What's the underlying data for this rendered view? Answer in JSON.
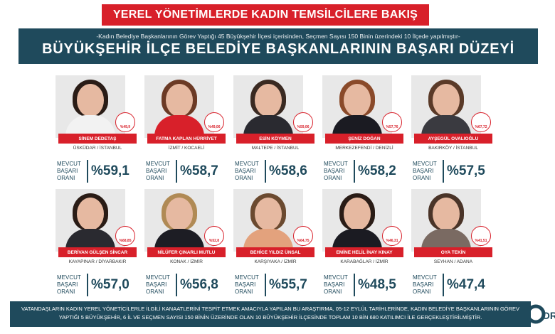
{
  "banner": "YEREL YÖNETİMLERDE KADIN TEMSİLCİLERE BAKIŞ",
  "header": {
    "subtitle": "-Kadın Belediye Başkanlarının Görev Yaptığı 45 Büyükşehir İlçesi içerisinden, Seçmen Sayısı 150 Binin üzerindeki 10 İlçede yapılmıştır-",
    "title": "BÜYÜKŞEHİR İLÇE BELEDİYE BAŞKANLARININ BAŞARI DÜZEYİ"
  },
  "score_label": "MEVCUT BAŞARI ORANI",
  "mayors": [
    {
      "name": "SİNEM DEDETAŞ",
      "loc": "ÜSKÜDAR / İSTANBUL",
      "score": "%59,1",
      "badge": "%49,9"
    },
    {
      "name": "FATMA KAPLAN HÜRRİYET",
      "loc": "İZMİT / KOCAELİ",
      "score": "%58,7",
      "badge": "%49,06"
    },
    {
      "name": "ESİN KÖYMEN",
      "loc": "MALTEPE / İSTANBUL",
      "score": "%58,6",
      "badge": "%59,06"
    },
    {
      "name": "ŞENİZ DOĞAN",
      "loc": "MERKEZEFENDİ / DENİZLİ",
      "score": "%58,2",
      "badge": "%57,76"
    },
    {
      "name": "AYŞEGÜL OVALIOĞLU",
      "loc": "BAKIRKÖY / İSTANBUL",
      "score": "%57,5",
      "badge": "%67,72"
    },
    {
      "name": "BERİVAN GÜLŞEN SİNCAR",
      "loc": "KAYAPINAR / DİYARBAKIR",
      "score": "%57,0",
      "badge": "%68,85"
    },
    {
      "name": "NİLÜFER ÇINARLI MUTLU",
      "loc": "KONAK / İZMİR",
      "score": "%56,8",
      "badge": "%52,8"
    },
    {
      "name": "BEHİCE YILDIZ ÜNSAL",
      "loc": "KARŞIYAKA / İZMİR",
      "score": "%55,7",
      "badge": "%64,75"
    },
    {
      "name": "EMİNE HELİL İNAY KINAY",
      "loc": "KARABAĞLAR / İZMİR",
      "score": "%48,5",
      "badge": "%46,31"
    },
    {
      "name": "OYA TEKİN",
      "loc": "SEYHAN / ADANA",
      "score": "%47,4",
      "badge": "%41,51"
    }
  ],
  "footer": "VATANDAŞLARIN KADIN YEREL YÖNETİCİLERLE İLGİLİ KANAATLERİNİ TESPİT ETMEK AMACIYLA YAPILAN BU ARAŞTIRMA, 05-12 EYLÜL TARİHLERİNDE, KADIN BELEDİYE BAŞKANLARININ GÖREV YAPTIĞI 5 BÜYÜKŞEHİR, 6 İL VE SEÇMEN SAYISI 150 BİNİN ÜZERİNDE OLAN 10 BÜYÜKŞEHİR İLÇESİNDE TOPLAM 10 BİN 680 KATILIMCI İLE GERÇEKLEŞTİRİLMİŞTİR.",
  "logo_text": "OR",
  "colors": {
    "red": "#d8202a",
    "navy": "#1f4a5c"
  }
}
